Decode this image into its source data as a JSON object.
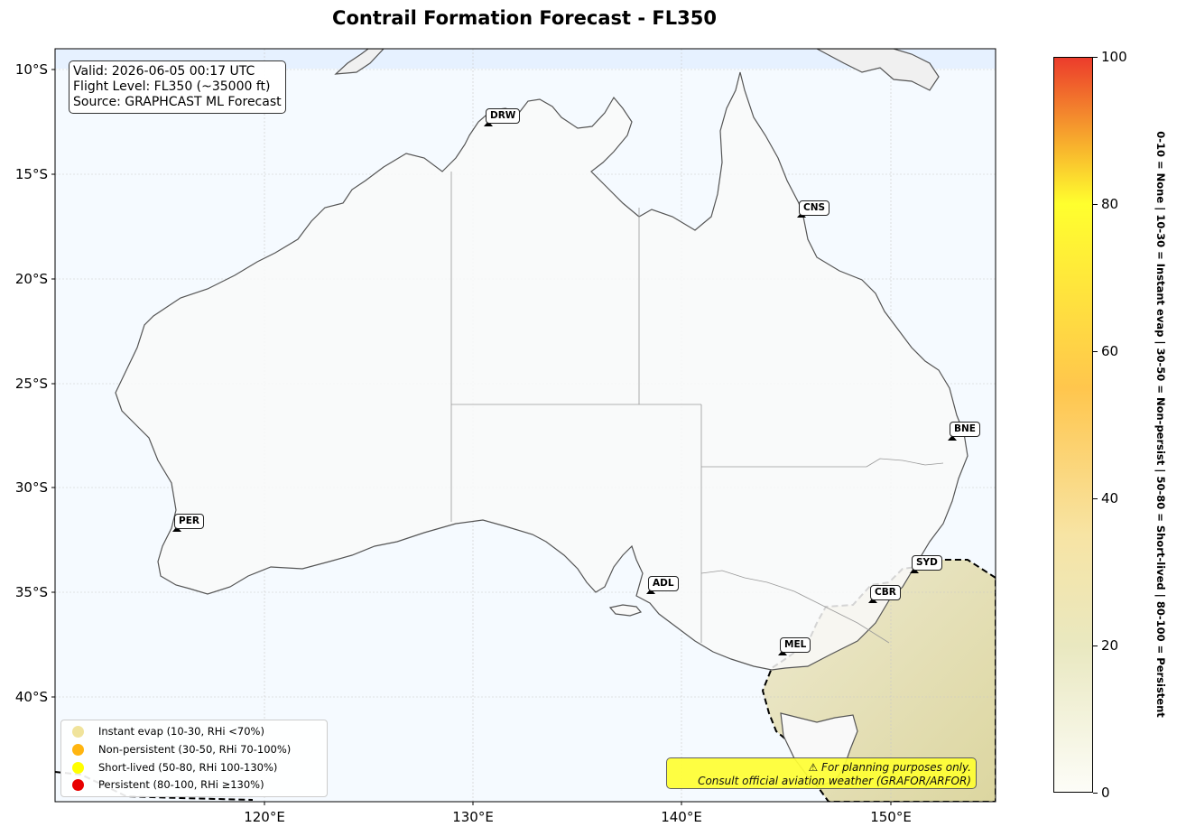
{
  "title": "Contrail Formation Forecast - FL350",
  "info": {
    "valid": "Valid: 2026-06-05 00:17 UTC",
    "flight_level": "Flight Level: FL350 (~35000 ft)",
    "source": "Source: GRAPHCAST ML Forecast"
  },
  "map": {
    "extent": {
      "lon": [
        110,
        155
      ],
      "lat": [
        -9.1,
        -45
      ]
    },
    "lat_ticks": [
      {
        "value": -10,
        "label": "10°S"
      },
      {
        "value": -15,
        "label": "15°S"
      },
      {
        "value": -20,
        "label": "20°S"
      },
      {
        "value": -25,
        "label": "25°S"
      },
      {
        "value": -30,
        "label": "30°S"
      },
      {
        "value": -35,
        "label": "35°S"
      },
      {
        "value": -40,
        "label": "40°S"
      }
    ],
    "lon_ticks": [
      {
        "value": 120,
        "label": "120°E"
      },
      {
        "value": 130,
        "label": "130°E"
      },
      {
        "value": 140,
        "label": "140°E"
      },
      {
        "value": 150,
        "label": "150°E"
      }
    ],
    "colors": {
      "ocean": "#f5faff",
      "land": "#f9f9f9",
      "coast": "#555555",
      "border": "#999999",
      "forecast_fill": "#e7e4bd"
    }
  },
  "airports": [
    {
      "code": "DRW",
      "lon": 130.9,
      "lat": -12.4
    },
    {
      "code": "CNS",
      "lon": 145.7,
      "lat": -16.9
    },
    {
      "code": "BNE",
      "lon": 153.1,
      "lat": -27.4
    },
    {
      "code": "PER",
      "lon": 115.9,
      "lat": -31.9
    },
    {
      "code": "ADL",
      "lon": 138.5,
      "lat": -34.9
    },
    {
      "code": "SYD",
      "lon": 151.2,
      "lat": -33.9
    },
    {
      "code": "CBR",
      "lon": 149.2,
      "lat": -35.3
    },
    {
      "code": "MEL",
      "lon": 144.8,
      "lat": -37.7
    }
  ],
  "legend": [
    {
      "label": "Instant evap (10-30, RHi <70%)",
      "color": "#f0e39b"
    },
    {
      "label": "Non-persistent (30-50, RHi 70-100%)",
      "color": "#ffb510"
    },
    {
      "label": "Short-lived (50-80, RHi 100-130%)",
      "color": "#ffff00"
    },
    {
      "label": "Persistent (80-100, RHi ≥130%)",
      "color": "#e80000"
    }
  ],
  "disclaimer": {
    "line1": "⚠ For planning purposes only.",
    "line2": "Consult official aviation weather (GRAFOR/ARFOR)"
  },
  "colorbar": {
    "min": 0,
    "max": 100,
    "ticks": [
      "0",
      "20",
      "40",
      "60",
      "80",
      "100"
    ],
    "side_label": "0-10 = None  |  10-30 = Instant evap  |  30-50 = Non-persist  |  50-80 = Short-lived  |  80-100 = Persistent"
  }
}
